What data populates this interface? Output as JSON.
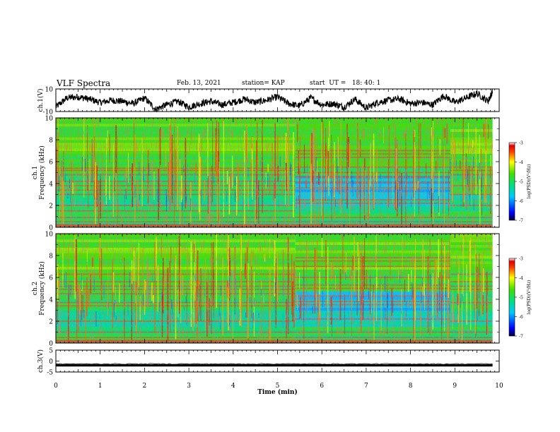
{
  "header": {
    "title": "VLF Spectra",
    "date": "Feb. 13, 2021",
    "station": "station= KAP",
    "start": "start  UT =   18: 40: 1"
  },
  "chart_data": [
    {
      "type": "line",
      "panel": "ch1-waveform",
      "ylabel": "ch.1(V)",
      "ylim": [
        -10,
        10
      ],
      "yticks": [
        "10",
        "-10"
      ],
      "xlim": [
        0,
        10
      ],
      "x": [
        0.0,
        0.25,
        0.5,
        0.75,
        1.0,
        1.25,
        1.5,
        1.75,
        2.0,
        2.25,
        2.5,
        2.75,
        3.0,
        3.25,
        3.5,
        3.75,
        4.0,
        4.25,
        4.5,
        4.75,
        5.0,
        5.25,
        5.5,
        5.75,
        6.0,
        6.25,
        6.5,
        6.75,
        7.0,
        7.25,
        7.5,
        7.75,
        8.0,
        8.25,
        8.5,
        8.75,
        9.0,
        9.25,
        9.5,
        9.75,
        9.85
      ],
      "y": [
        -6,
        2,
        3,
        1,
        -2,
        0,
        -1,
        -3,
        2,
        -8,
        -4,
        -1,
        -6,
        -3,
        -1,
        -4,
        -2,
        1,
        -2,
        0,
        3,
        -3,
        -5,
        2,
        -4,
        -3,
        -6,
        1,
        -7,
        -2,
        0,
        1,
        -3,
        -2,
        -4,
        4,
        -2,
        2,
        6,
        -1,
        8
      ]
    },
    {
      "type": "heatmap",
      "panel": "ch1-spectrogram",
      "ylabel": "ch.1\nFrequency (kHz)",
      "ylim": [
        0,
        10
      ],
      "yticks": [
        "0",
        "2",
        "4",
        "6",
        "8",
        "10"
      ],
      "xlim": [
        0,
        10
      ],
      "colorbar": {
        "label": "log(PSD)(V²/Hz)",
        "ticks": [
          "-3",
          "-4",
          "-5",
          "-6",
          "-7"
        ],
        "range": [
          -7,
          -3
        ]
      },
      "segments": [
        {
          "t0": 0.0,
          "t1": 5.4,
          "lines_khz": [
            0.2,
            0.5,
            0.9,
            1.5,
            2.0,
            3.0,
            3.4,
            3.8,
            4.2,
            4.8,
            5.2,
            5.4
          ]
        },
        {
          "t0": 5.4,
          "t1": 8.9,
          "lines_khz": [
            0.2,
            0.5,
            0.9,
            2.2,
            2.5,
            3.6,
            4.1,
            4.6,
            5.0,
            5.5,
            6.4,
            6.7,
            7.0
          ]
        },
        {
          "t0": 8.9,
          "t1": 9.85,
          "lines_khz": [
            0.2,
            0.5,
            0.9,
            2.0,
            3.0,
            3.8,
            4.8,
            5.2,
            5.5
          ]
        }
      ]
    },
    {
      "type": "heatmap",
      "panel": "ch2-spectrogram",
      "ylabel": "ch.2\nFrequency (kHz)",
      "ylim": [
        0,
        10
      ],
      "yticks": [
        "0",
        "2",
        "4",
        "6",
        "8",
        "10"
      ],
      "xlim": [
        0,
        10
      ],
      "colorbar": {
        "label": "log(PSD)(V²/Hz)",
        "ticks": [
          "-3",
          "-4",
          "-5",
          "-6",
          "-7"
        ],
        "range": [
          -7,
          -3
        ]
      },
      "segments": [
        {
          "t0": 0.0,
          "t1": 5.4,
          "lines_khz": [
            0.2,
            0.5,
            1.0,
            2.0,
            3.4,
            3.7,
            4.5,
            4.9,
            5.2,
            5.6,
            6.3
          ]
        },
        {
          "t0": 5.4,
          "t1": 8.9,
          "lines_khz": [
            0.2,
            0.5,
            1.0,
            2.2,
            3.5,
            3.8,
            4.3,
            5.0,
            5.3,
            6.0,
            7.0,
            7.5,
            7.8
          ]
        },
        {
          "t0": 8.9,
          "t1": 9.85,
          "lines_khz": [
            0.2,
            0.5,
            1.0,
            2.0,
            3.7,
            4.9,
            5.2,
            5.6,
            6.3
          ]
        }
      ]
    },
    {
      "type": "line",
      "panel": "ch3-waveform",
      "ylabel": "ch.3(V)",
      "ylim": [
        -5,
        5
      ],
      "yticks": [
        "5",
        "0",
        "-5"
      ],
      "xlim": [
        0,
        10
      ],
      "x": [
        0.0,
        9.85
      ],
      "y": [
        -2,
        -2
      ],
      "band_v": [
        -2.5,
        -1.5
      ]
    }
  ],
  "x_axis": {
    "label": "Time  (min)",
    "ticks": [
      "0",
      "1",
      "2",
      "3",
      "4",
      "5",
      "6",
      "7",
      "8",
      "9",
      "10"
    ]
  }
}
